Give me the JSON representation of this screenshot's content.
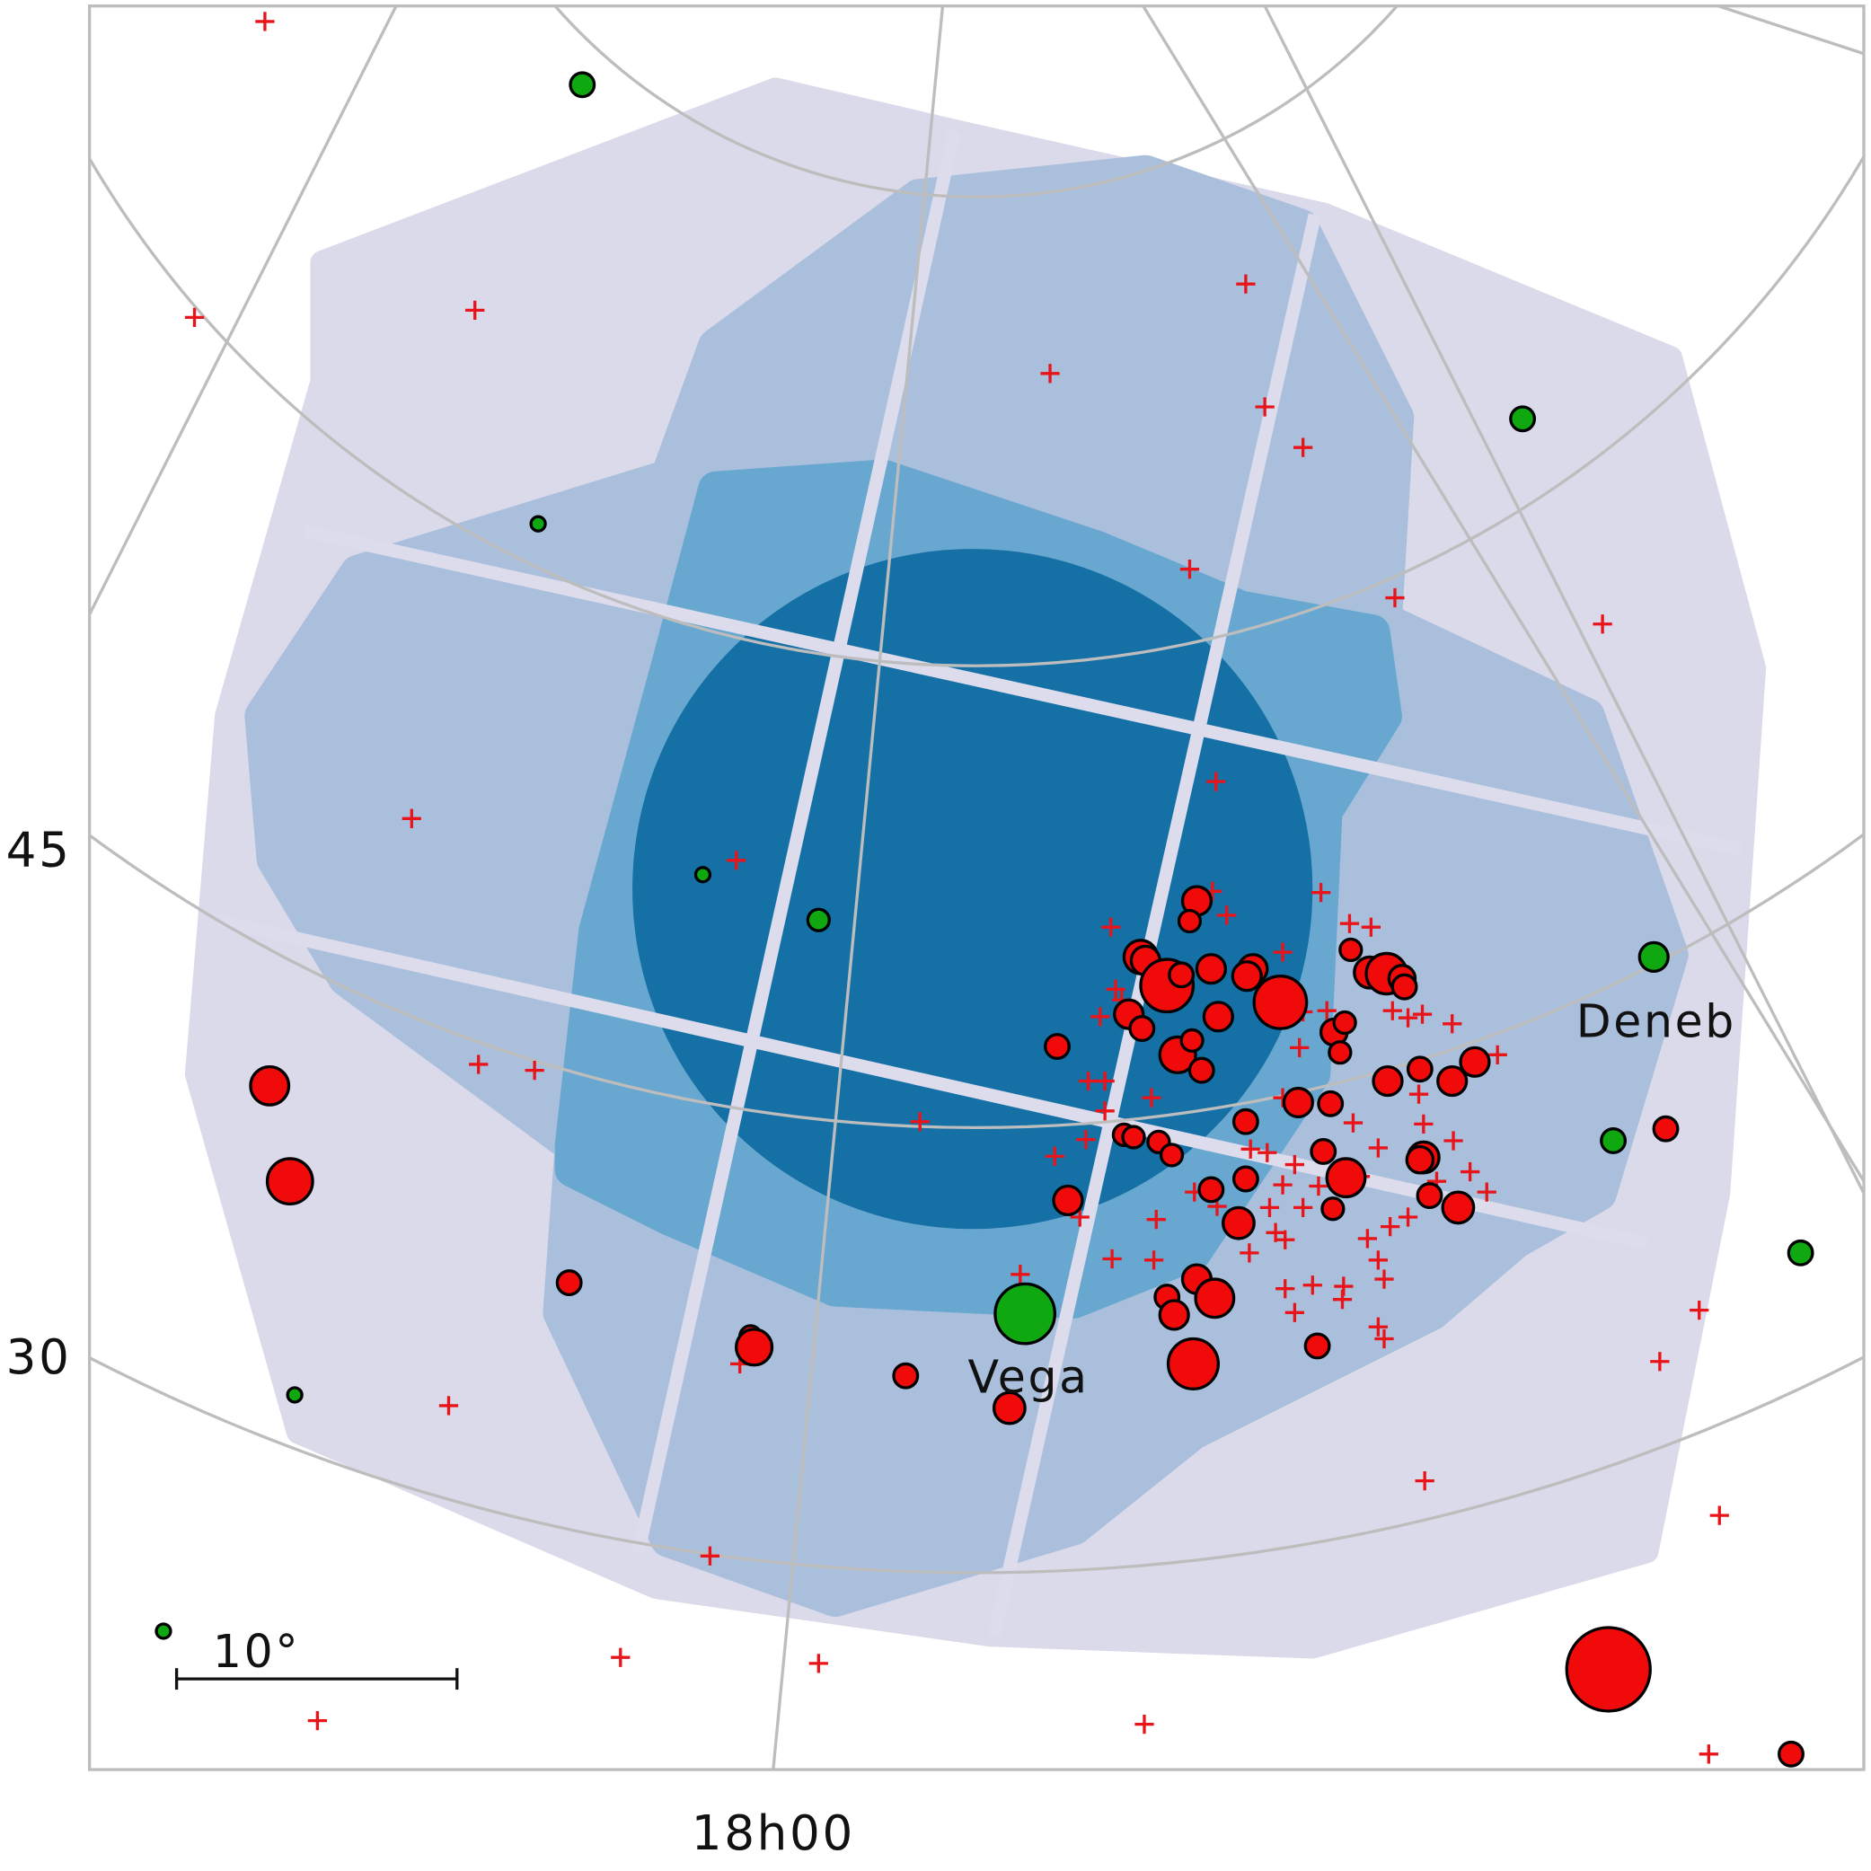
{
  "axis_labels": {
    "dec": [
      "45",
      "30"
    ],
    "ra": [
      "18h00"
    ]
  },
  "annotations": {
    "vega": "Vega",
    "deneb": "Deneb"
  },
  "scale_bar": {
    "label": "10°"
  }
}
